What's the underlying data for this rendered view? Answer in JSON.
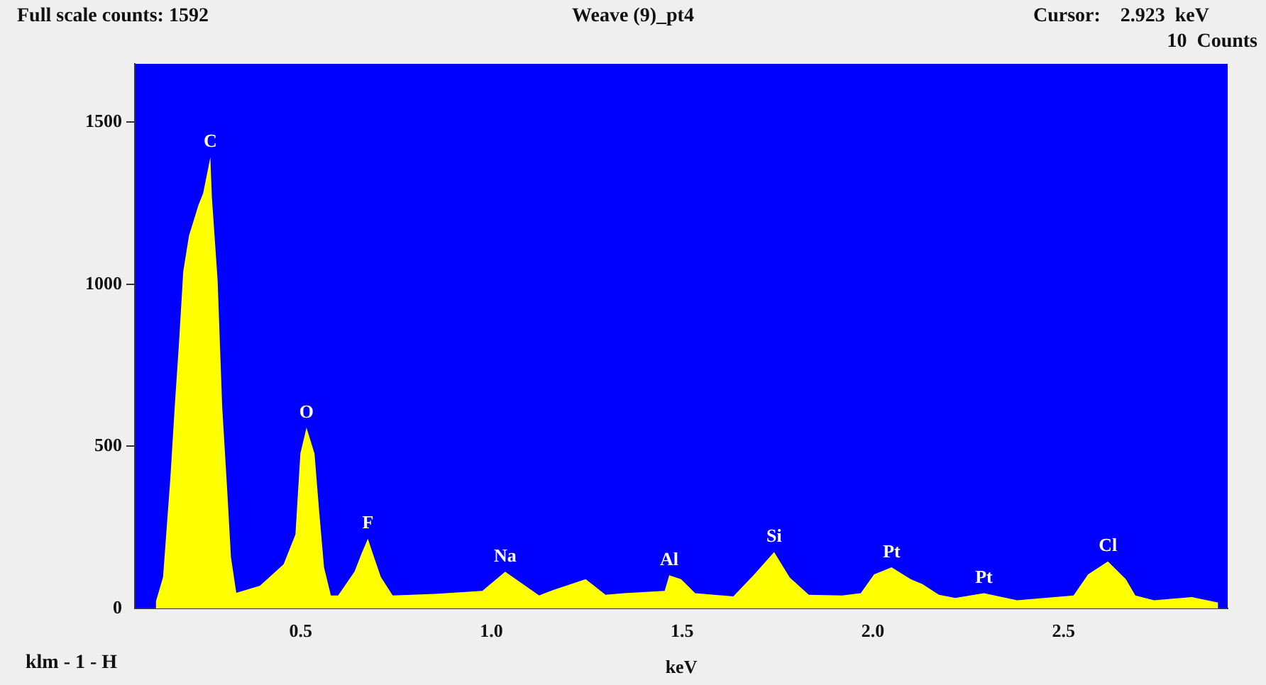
{
  "chart_data": {
    "type": "area",
    "title": "Weave (9)_pt4",
    "xlabel": "keV",
    "x": [
      0.12,
      0.139,
      0.158,
      0.17,
      0.18,
      0.192,
      0.207,
      0.232,
      0.244,
      0.263,
      0.267,
      0.282,
      0.294,
      0.307,
      0.317,
      0.331,
      0.393,
      0.455,
      0.486,
      0.499,
      0.515,
      0.536,
      0.548,
      0.561,
      0.579,
      0.598,
      0.641,
      0.66,
      0.676,
      0.691,
      0.71,
      0.741,
      0.852,
      0.976,
      1.036,
      1.125,
      1.162,
      1.247,
      1.299,
      1.348,
      1.454,
      1.466,
      1.497,
      1.534,
      1.634,
      1.689,
      1.741,
      1.782,
      1.832,
      1.919,
      1.968,
      2.003,
      2.049,
      2.099,
      2.13,
      2.173,
      2.216,
      2.291,
      2.378,
      2.526,
      2.564,
      2.616,
      2.663,
      2.688,
      2.737,
      2.836,
      2.905
    ],
    "values": [
      20,
      97,
      400,
      630,
      805,
      1040,
      1150,
      1245,
      1280,
      1392,
      1268,
      1013,
      623,
      368,
      158,
      48,
      70,
      136,
      228,
      478,
      558,
      478,
      303,
      127,
      40,
      40,
      114,
      171,
      215,
      162,
      97,
      40,
      45,
      54,
      113,
      40,
      57,
      90,
      42,
      47,
      54,
      102,
      90,
      47,
      37,
      105,
      174,
      95,
      42,
      40,
      47,
      105,
      127,
      90,
      75,
      42,
      32,
      47,
      25,
      40,
      105,
      145,
      90,
      40,
      25,
      35,
      18
    ],
    "color": "#ffff00",
    "xlim": [
      0.065,
      2.93
    ],
    "ylim": [
      0,
      1680
    ],
    "xticks": [
      0.5,
      {
        "value": 1,
        "label": "1.0"
      },
      1.5,
      {
        "value": 2,
        "label": "2.0"
      },
      2.5
    ],
    "yticks": [
      0,
      500,
      1000,
      1500
    ],
    "grid": false,
    "legend": false,
    "marker": "none",
    "annotations": [
      "Full scale counts: 1592",
      "Cursor:    2.923  keV",
      "10  Counts",
      "klm - 1 - H",
      {
        "text": "C",
        "x": 0.263,
        "y": 1392
      },
      {
        "text": "O",
        "x": 0.515,
        "y": 558
      },
      {
        "text": "F",
        "x": 0.676,
        "y": 215
      },
      {
        "text": "Na",
        "x": 1.036,
        "y": 113
      },
      {
        "text": "Al",
        "x": 1.466,
        "y": 102
      },
      {
        "text": "Si",
        "x": 1.741,
        "y": 174
      },
      {
        "text": "Pt",
        "x": 2.049,
        "y": 127
      },
      {
        "text": "Pt",
        "x": 2.291,
        "y": 47
      },
      {
        "text": "Cl",
        "x": 2.616,
        "y": 145
      }
    ]
  }
}
